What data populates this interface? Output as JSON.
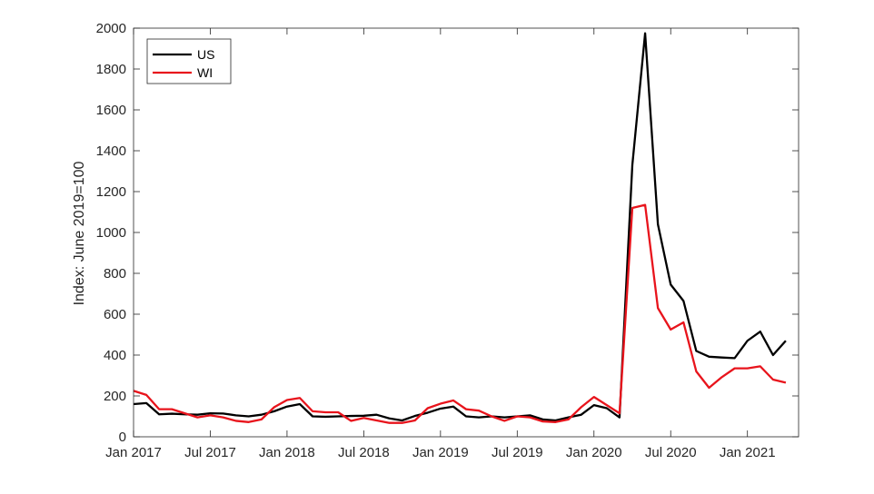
{
  "chart_data": {
    "type": "line",
    "title": "",
    "xlabel": "",
    "ylabel": "Index: June 2019=100",
    "ylim": [
      0,
      2000
    ],
    "yticks": [
      0,
      200,
      400,
      600,
      800,
      1000,
      1200,
      1400,
      1600,
      1800,
      2000
    ],
    "xlim": [
      "2017-01",
      "2021-05"
    ],
    "xticks": [
      {
        "date": "2017-01",
        "label": "Jan 2017"
      },
      {
        "date": "2017-07",
        "label": "Jul 2017"
      },
      {
        "date": "2018-01",
        "label": "Jan 2018"
      },
      {
        "date": "2018-07",
        "label": "Jul 2018"
      },
      {
        "date": "2019-01",
        "label": "Jan 2019"
      },
      {
        "date": "2019-07",
        "label": "Jul 2019"
      },
      {
        "date": "2020-01",
        "label": "Jan 2020"
      },
      {
        "date": "2020-07",
        "label": "Jul 2020"
      },
      {
        "date": "2021-01",
        "label": "Jan 2021"
      }
    ],
    "grid": false,
    "legend_position": "top-left",
    "x": [
      "2017-01",
      "2017-02",
      "2017-03",
      "2017-04",
      "2017-05",
      "2017-06",
      "2017-07",
      "2017-08",
      "2017-09",
      "2017-10",
      "2017-11",
      "2017-12",
      "2018-01",
      "2018-02",
      "2018-03",
      "2018-04",
      "2018-05",
      "2018-06",
      "2018-07",
      "2018-08",
      "2018-09",
      "2018-10",
      "2018-11",
      "2018-12",
      "2019-01",
      "2019-02",
      "2019-03",
      "2019-04",
      "2019-05",
      "2019-06",
      "2019-07",
      "2019-08",
      "2019-09",
      "2019-10",
      "2019-11",
      "2019-12",
      "2020-01",
      "2020-02",
      "2020-03",
      "2020-04",
      "2020-05",
      "2020-06",
      "2020-07",
      "2020-08",
      "2020-09",
      "2020-10",
      "2020-11",
      "2020-12",
      "2021-01",
      "2021-02",
      "2021-03",
      "2021-04"
    ],
    "series": [
      {
        "name": "US",
        "color": "#000000",
        "values": [
          160,
          165,
          110,
          113,
          110,
          108,
          115,
          114,
          105,
          100,
          108,
          125,
          148,
          160,
          100,
          98,
          100,
          102,
          103,
          108,
          90,
          80,
          102,
          118,
          138,
          148,
          100,
          95,
          100,
          95,
          100,
          105,
          85,
          80,
          95,
          108,
          155,
          140,
          95,
          1330,
          1975,
          1040,
          745,
          665,
          420,
          392,
          388,
          385,
          470,
          515,
          400,
          470
        ]
      },
      {
        "name": "WI",
        "color": "#e8141c",
        "values": [
          225,
          205,
          135,
          135,
          115,
          95,
          105,
          95,
          78,
          72,
          85,
          145,
          180,
          190,
          125,
          120,
          120,
          78,
          92,
          80,
          68,
          68,
          80,
          140,
          162,
          178,
          135,
          128,
          100,
          78,
          100,
          95,
          75,
          72,
          85,
          145,
          195,
          155,
          115,
          1120,
          1135,
          630,
          525,
          560,
          320,
          240,
          292,
          335,
          335,
          345,
          280,
          265
        ]
      }
    ]
  }
}
